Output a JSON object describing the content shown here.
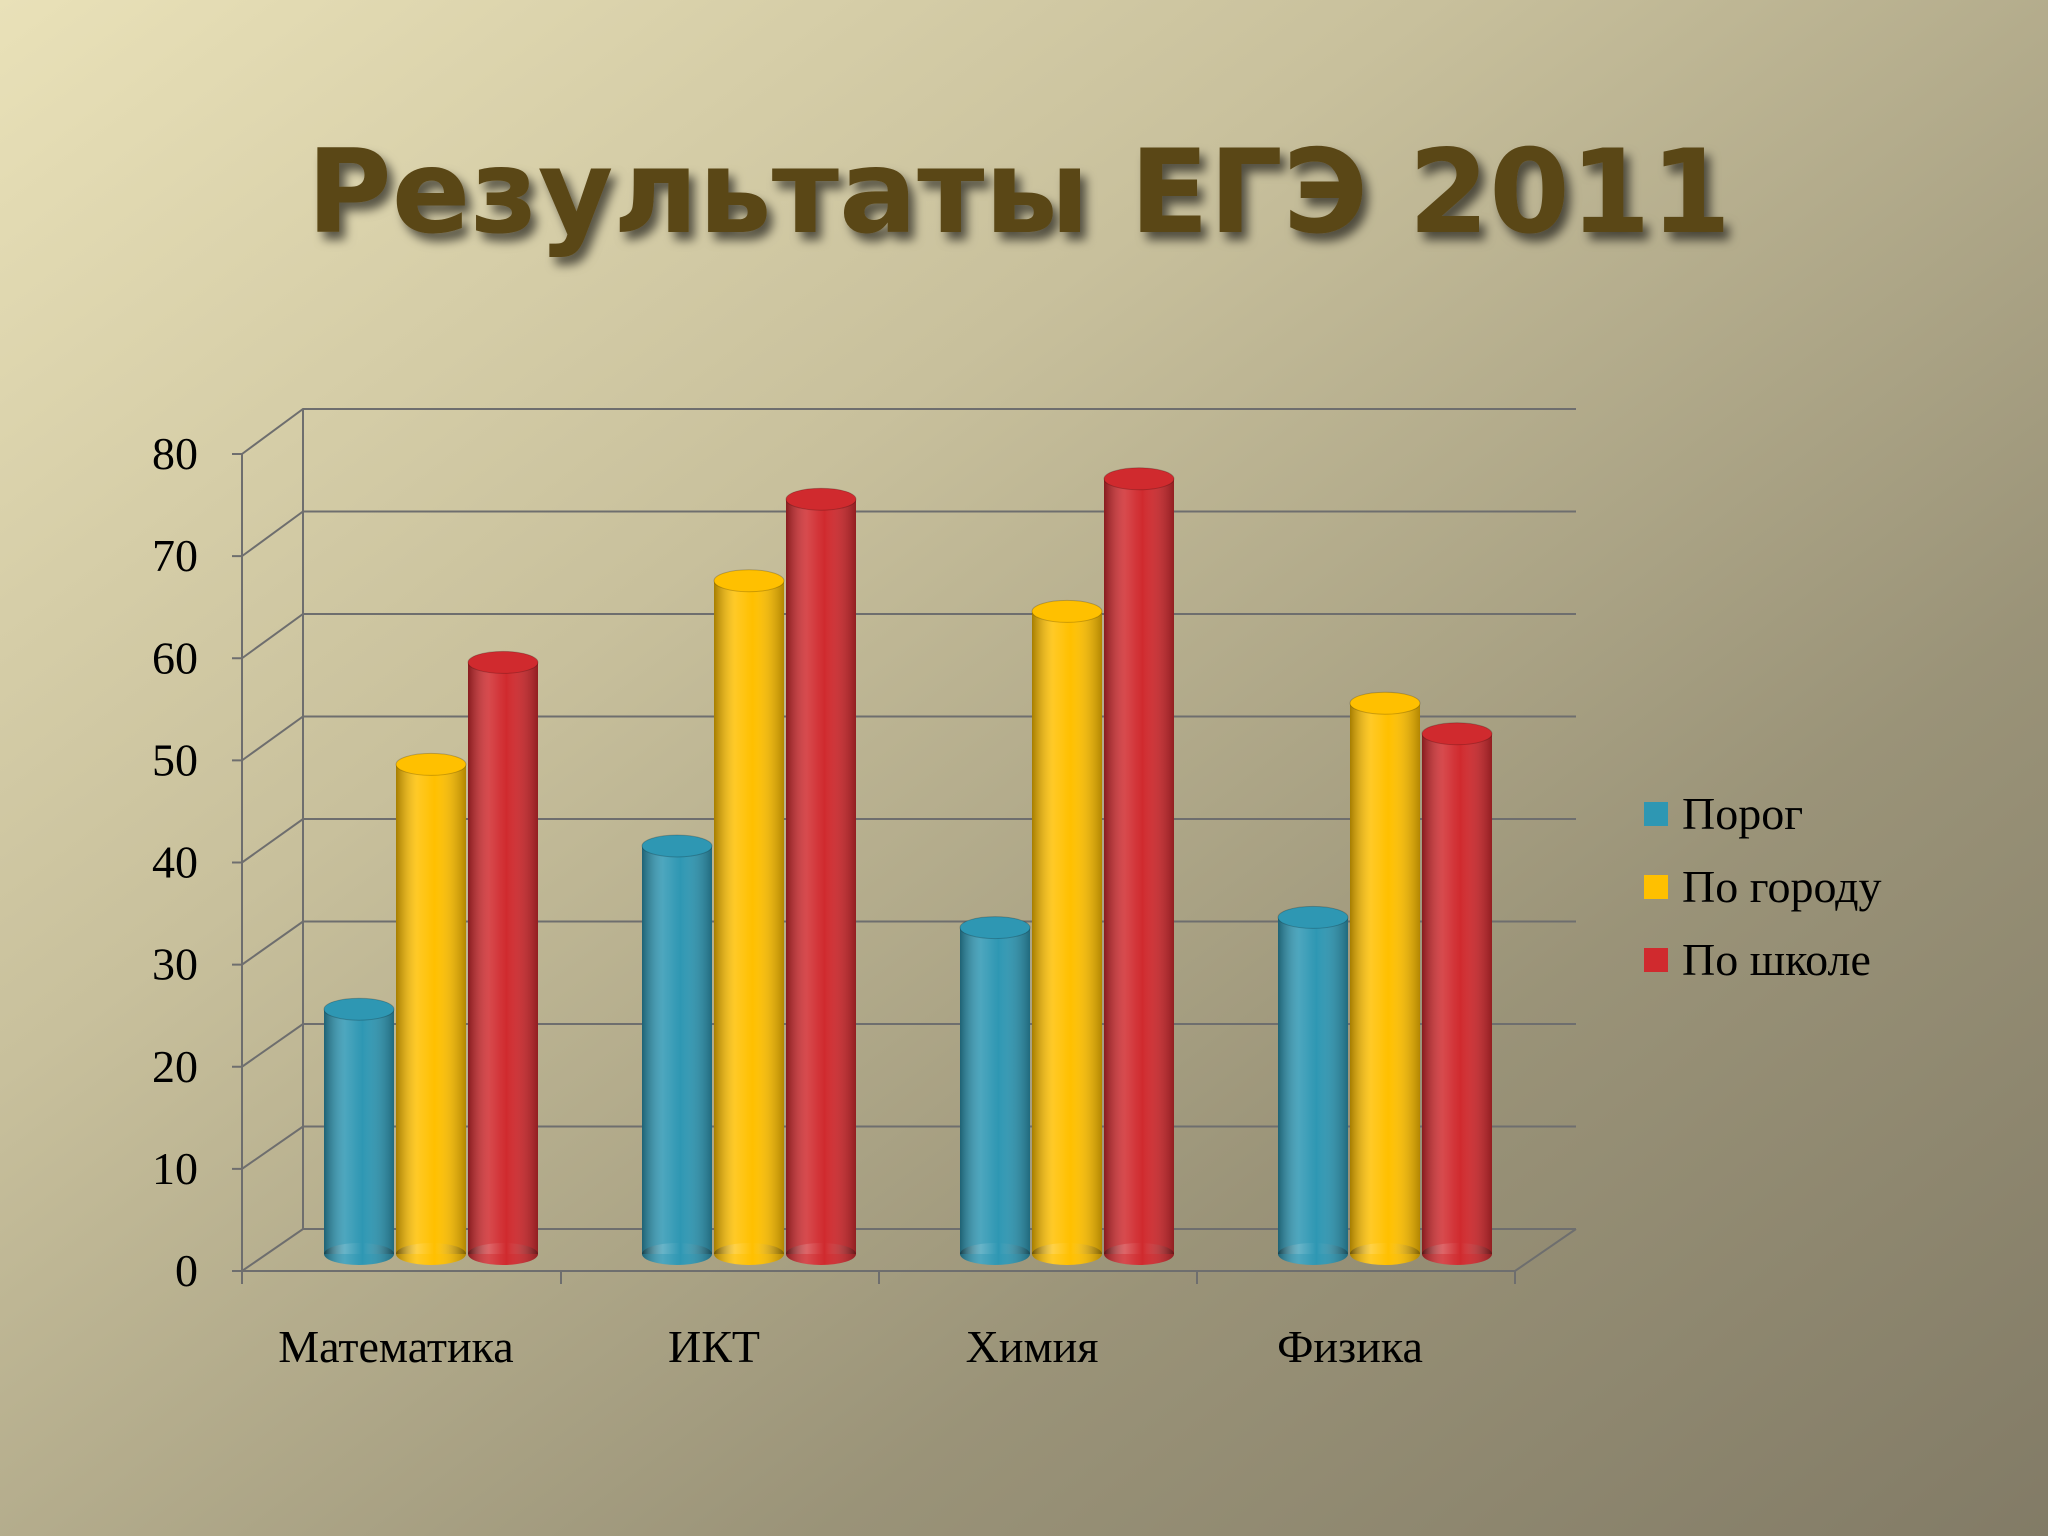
{
  "chart_data": {
    "type": "bar3d",
    "title": "Результаты ЕГЭ 2011",
    "categories": [
      "Математика",
      "ИКТ",
      "Химия",
      "Физика"
    ],
    "series": [
      {
        "name": "Порог",
        "color": "#2e97b3",
        "values": [
          24,
          40,
          32,
          33
        ]
      },
      {
        "name": "По городу",
        "color": "#ffc000",
        "values": [
          48,
          66,
          63,
          54
        ]
      },
      {
        "name": "По школе",
        "color": "#d02a2e",
        "values": [
          58,
          74,
          76,
          51
        ]
      }
    ],
    "ylim": [
      0,
      80
    ],
    "yticks": [
      0,
      10,
      20,
      30,
      40,
      50,
      60,
      70,
      80
    ],
    "grid": true,
    "legend": "right"
  }
}
